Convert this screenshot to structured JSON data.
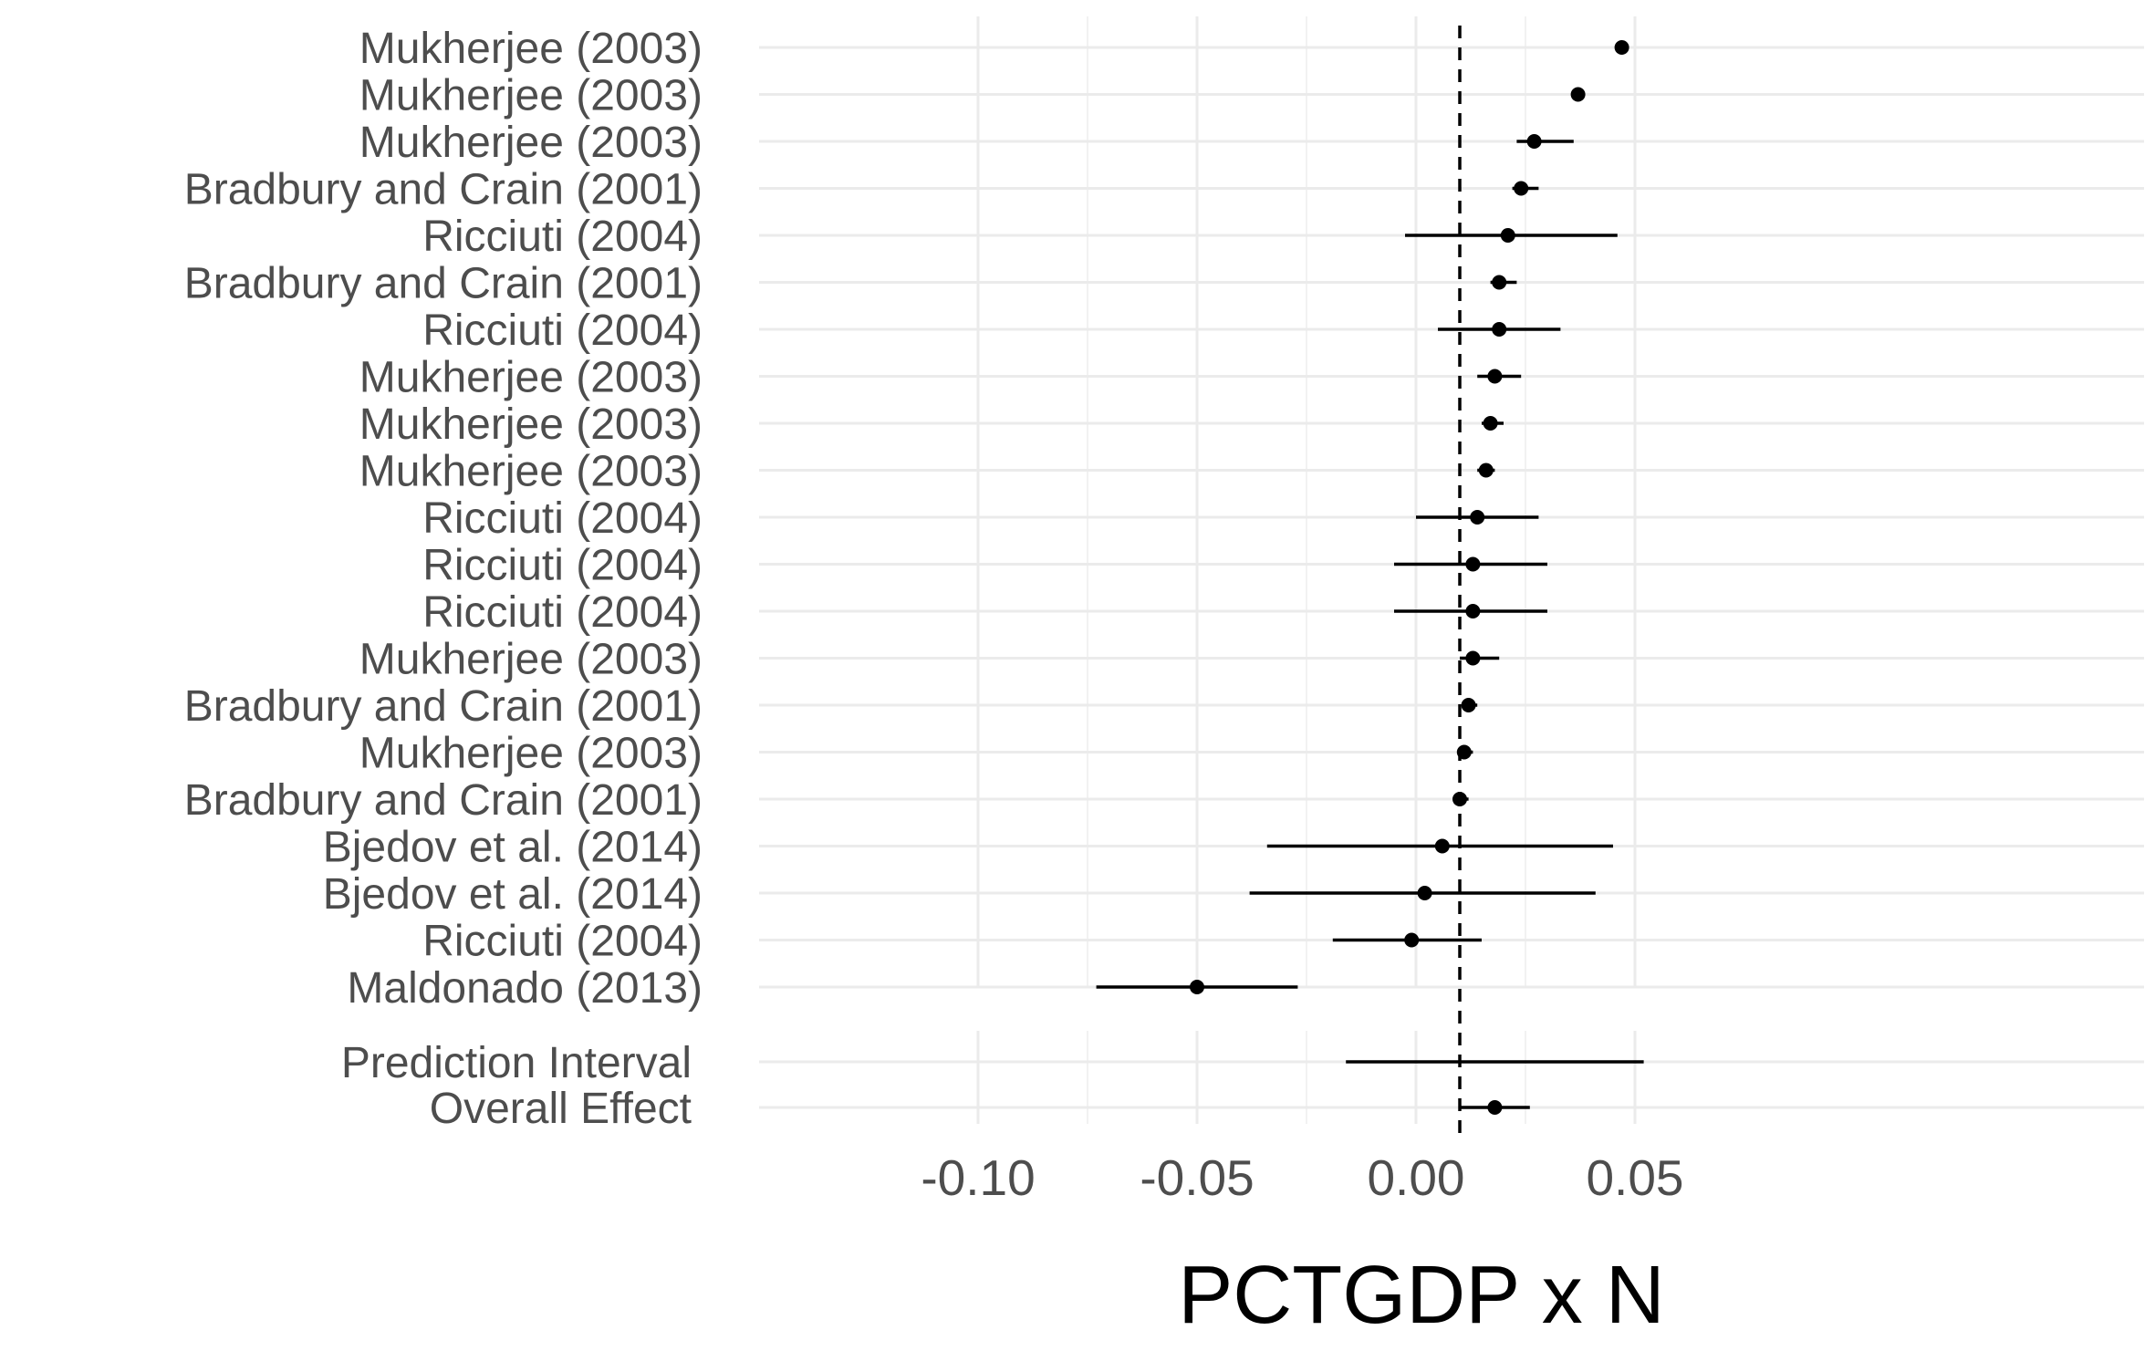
{
  "chart_data": {
    "type": "scatter",
    "subtype": "forest-plot",
    "title": "",
    "xlabel": "PCTGDP x N",
    "ylabel": "",
    "xlim": [
      -0.1,
      0.06
    ],
    "x_ticks": [
      -0.1,
      -0.05,
      0.0,
      0.05
    ],
    "x_tick_labels": [
      "-0.10",
      "-0.05",
      "0.00",
      "0.05"
    ],
    "reference_line": 0.01,
    "grid": true,
    "legend": "none",
    "studies": [
      {
        "label": "Mukherjee (2003)",
        "estimate": 0.047,
        "lower": 0.0455,
        "upper": 0.048
      },
      {
        "label": "Mukherjee (2003)",
        "estimate": 0.037,
        "lower": 0.0355,
        "upper": 0.0385
      },
      {
        "label": "Mukherjee (2003)",
        "estimate": 0.027,
        "lower": 0.023,
        "upper": 0.036
      },
      {
        "label": "Bradbury and Crain (2001)",
        "estimate": 0.024,
        "lower": 0.022,
        "upper": 0.028
      },
      {
        "label": "Ricciuti (2004)",
        "estimate": 0.021,
        "lower": -0.0025,
        "upper": 0.046
      },
      {
        "label": "Bradbury and Crain (2001)",
        "estimate": 0.019,
        "lower": 0.017,
        "upper": 0.023
      },
      {
        "label": "Ricciuti (2004)",
        "estimate": 0.019,
        "lower": 0.005,
        "upper": 0.033
      },
      {
        "label": "Mukherjee (2003)",
        "estimate": 0.018,
        "lower": 0.014,
        "upper": 0.024
      },
      {
        "label": "Mukherjee (2003)",
        "estimate": 0.017,
        "lower": 0.015,
        "upper": 0.02
      },
      {
        "label": "Mukherjee (2003)",
        "estimate": 0.016,
        "lower": 0.014,
        "upper": 0.018
      },
      {
        "label": "Ricciuti (2004)",
        "estimate": 0.014,
        "lower": 0.0,
        "upper": 0.028
      },
      {
        "label": "Ricciuti (2004)",
        "estimate": 0.013,
        "lower": -0.005,
        "upper": 0.03
      },
      {
        "label": "Ricciuti (2004)",
        "estimate": 0.013,
        "lower": -0.005,
        "upper": 0.03
      },
      {
        "label": "Mukherjee (2003)",
        "estimate": 0.013,
        "lower": 0.01,
        "upper": 0.019
      },
      {
        "label": "Bradbury and Crain (2001)",
        "estimate": 0.012,
        "lower": 0.011,
        "upper": 0.014
      },
      {
        "label": "Mukherjee (2003)",
        "estimate": 0.011,
        "lower": 0.01,
        "upper": 0.013
      },
      {
        "label": "Bradbury and Crain (2001)",
        "estimate": 0.01,
        "lower": 0.009,
        "upper": 0.012
      },
      {
        "label": "Bjedov et al. (2014)",
        "estimate": 0.006,
        "lower": -0.034,
        "upper": 0.045
      },
      {
        "label": "Bjedov et al. (2014)",
        "estimate": 0.002,
        "lower": -0.038,
        "upper": 0.041
      },
      {
        "label": "Ricciuti (2004)",
        "estimate": -0.001,
        "lower": -0.019,
        "upper": 0.015
      },
      {
        "label": "Maldonado (2013)",
        "estimate": -0.05,
        "lower": -0.073,
        "upper": -0.027
      }
    ],
    "summary": [
      {
        "label": "Prediction Interval",
        "estimate": null,
        "lower": -0.016,
        "upper": 0.052
      },
      {
        "label": "Overall Effect",
        "estimate": 0.018,
        "lower": 0.01,
        "upper": 0.026
      }
    ]
  }
}
